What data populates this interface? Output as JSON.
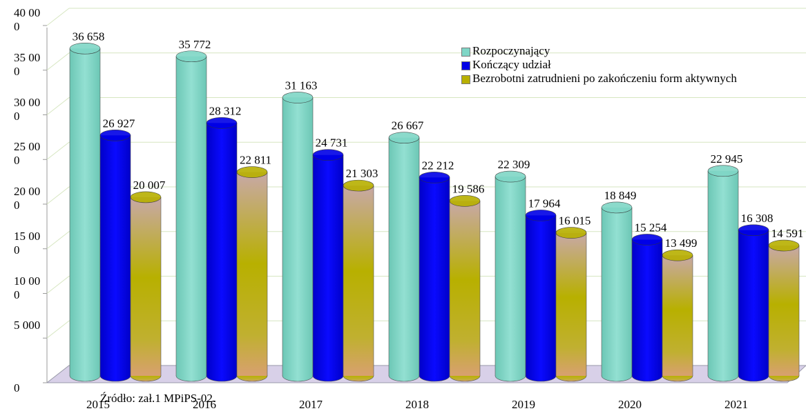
{
  "chart_data": {
    "type": "bar3d",
    "categories": [
      "2015",
      "2016",
      "2017",
      "2018",
      "2019",
      "2020",
      "2021"
    ],
    "series": [
      {
        "name": "Rozpoczynający",
        "color": "#7fd6c6",
        "values": [
          36658,
          35772,
          31163,
          26667,
          22309,
          18849,
          22945
        ],
        "value_labels": [
          "36 658",
          "35 772",
          "31 163",
          "26 667",
          "22 309",
          "18 849",
          "22 945"
        ]
      },
      {
        "name": "Kończący udział",
        "color": "#0000e6",
        "values": [
          26927,
          28312,
          24731,
          22212,
          17964,
          15254,
          16308
        ],
        "value_labels": [
          "26 927",
          "28 312",
          "24 731",
          "22 212",
          "17 964",
          "15 254",
          "16 308"
        ]
      },
      {
        "name": "Bezrobotni zatrudnieni po zakończeniu form aktywnych",
        "color": "#b8b000",
        "values": [
          20007,
          22811,
          21303,
          19586,
          16015,
          13499,
          14591
        ],
        "value_labels": [
          "20 007",
          "22 811",
          "21 303",
          "19 586",
          "16 015",
          "13 499",
          "14 591"
        ]
      }
    ],
    "ylim": [
      0,
      40000
    ],
    "yticks": [
      0,
      {
        "value": 5000,
        "label": "5 000"
      },
      {
        "value": 10000,
        "label": "10 000"
      },
      {
        "value": 15000,
        "label": "15 000"
      },
      {
        "value": 20000,
        "label": "20 000"
      },
      {
        "value": 25000,
        "label": "25 000"
      },
      {
        "value": 30000,
        "label": "30 000"
      },
      {
        "value": 35000,
        "label": "35 000"
      },
      {
        "value": 40000,
        "label": "40 000"
      }
    ],
    "grid": true,
    "legend": "top-right",
    "source": "Źródło: zał.1 MPiPS-02."
  }
}
